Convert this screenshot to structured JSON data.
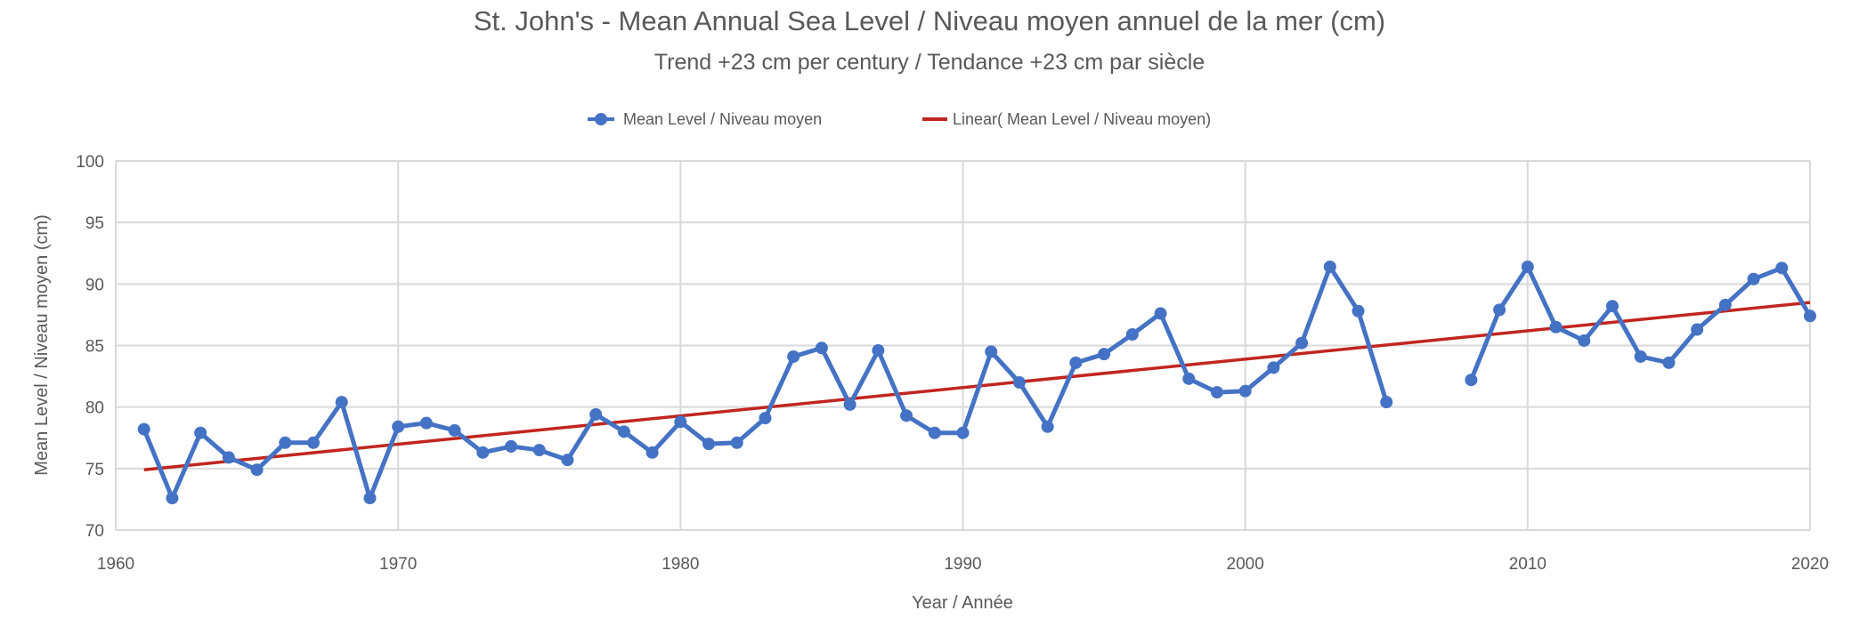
{
  "chart_data": {
    "type": "line",
    "title": "St. John's - Mean Annual Sea Level / Niveau moyen annuel de la mer (cm)",
    "subtitle": "Trend +23 cm per century / Tendance +23 cm par siècle",
    "xlabel": "Year / Année",
    "ylabel": "Mean Level / Niveau moyen (cm)",
    "xlim": [
      1960,
      2020
    ],
    "ylim": [
      70,
      100
    ],
    "xticks": [
      "1960",
      "1970",
      "1980",
      "1990",
      "2000",
      "2010",
      "2020"
    ],
    "yticks": [
      "70",
      "75",
      "80",
      "85",
      "90",
      "95",
      "100"
    ],
    "grid": true,
    "legend_position": "top",
    "legend": [
      "Mean Level / Niveau moyen",
      "Linear( Mean Level / Niveau moyen)"
    ],
    "colors": {
      "series": "#4472C4",
      "trend": "#C0261F",
      "grid": "#D9D9D9"
    },
    "series": [
      {
        "name": "Mean Level / Niveau moyen",
        "x": [
          1961,
          1962,
          1963,
          1964,
          1965,
          1966,
          1967,
          1968,
          1969,
          1970,
          1971,
          1972,
          1973,
          1974,
          1975,
          1976,
          1977,
          1978,
          1979,
          1980,
          1981,
          1982,
          1983,
          1984,
          1985,
          1986,
          1987,
          1988,
          1989,
          1990,
          1991,
          1992,
          1993,
          1994,
          1995,
          1996,
          1997,
          1998,
          1999,
          2000,
          2001,
          2002,
          2003,
          2004,
          2005,
          2006,
          2007,
          2008,
          2009,
          2010,
          2011,
          2012,
          2013,
          2014,
          2015,
          2016,
          2017,
          2018,
          2019,
          2020
        ],
        "values": [
          78.2,
          72.6,
          77.9,
          75.9,
          74.9,
          77.1,
          77.1,
          80.4,
          72.6,
          78.4,
          78.7,
          78.1,
          76.3,
          76.8,
          76.5,
          75.7,
          79.4,
          78.0,
          76.3,
          78.8,
          77.0,
          77.1,
          79.1,
          84.1,
          84.8,
          80.2,
          84.6,
          79.3,
          77.9,
          77.9,
          84.5,
          82.0,
          78.4,
          83.6,
          84.3,
          85.9,
          87.6,
          82.3,
          81.2,
          81.3,
          83.2,
          85.2,
          91.4,
          87.8,
          80.4,
          null,
          null,
          82.2,
          87.9,
          91.4,
          86.5,
          85.4,
          88.2,
          84.1,
          83.6,
          86.3,
          88.3,
          90.4,
          91.3,
          87.4
        ]
      },
      {
        "name": "Linear( Mean Level / Niveau moyen)",
        "x": [
          1961,
          2020
        ],
        "values": [
          74.9,
          88.5
        ]
      }
    ]
  }
}
